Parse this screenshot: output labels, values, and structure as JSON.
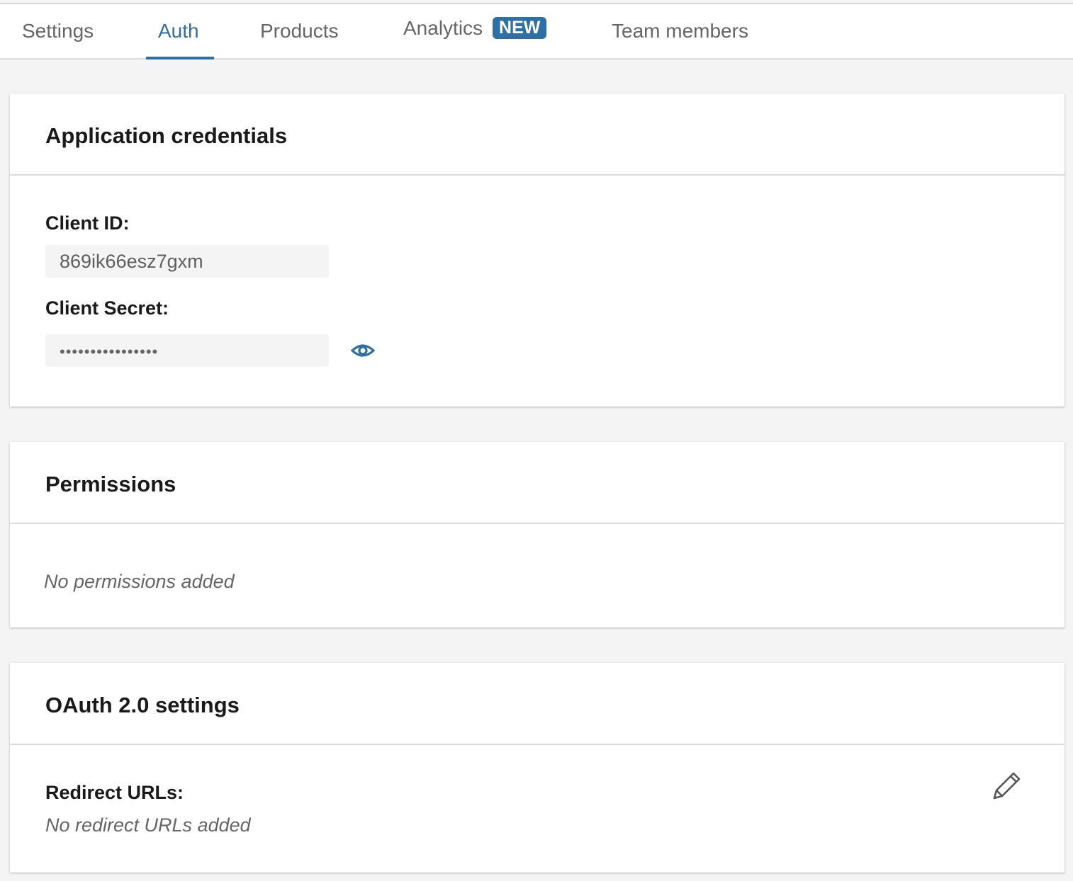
{
  "tabs": [
    {
      "label": "Settings"
    },
    {
      "label": "Auth",
      "active": true
    },
    {
      "label": "Products"
    },
    {
      "label": "Analytics",
      "badge": "NEW"
    },
    {
      "label": "Team members"
    }
  ],
  "accent_color": "#2e6fa6",
  "credentials": {
    "title": "Application credentials",
    "client_id_label": "Client ID:",
    "client_id": "869ik66esz7gxm",
    "client_secret_label": "Client Secret:",
    "client_secret_masked": "••••••••••••••••",
    "reveal_icon": "eye-icon"
  },
  "permissions": {
    "title": "Permissions",
    "empty": "No permissions added"
  },
  "oauth": {
    "title": "OAuth 2.0 settings",
    "redirect_label": "Redirect URLs:",
    "redirect_empty": "No redirect URLs added",
    "edit_icon": "pencil-icon"
  }
}
